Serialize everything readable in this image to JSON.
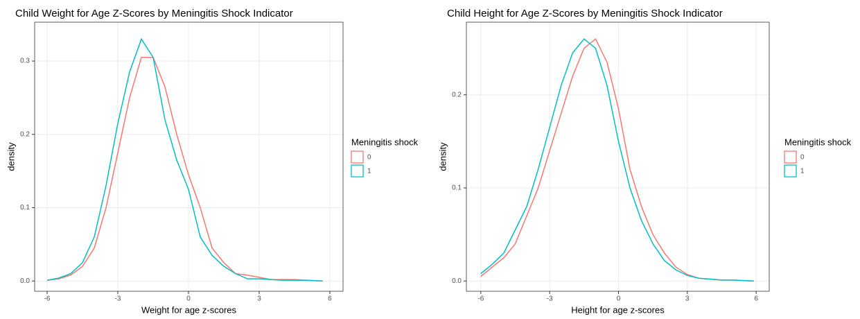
{
  "chart_data": [
    {
      "type": "line",
      "title": "Child Weight for Age Z-Scores by Meningitis Shock Indicator",
      "x_label": "Weight for age z-scores",
      "y_label": "density",
      "legend_title": "Meningitis shock",
      "legend": "right",
      "grid": true,
      "x": [
        -6,
        -5.5,
        -5,
        -4.5,
        -4,
        -3.5,
        -3,
        -2.5,
        -2,
        -1.5,
        -1,
        -0.5,
        0,
        0.5,
        1,
        1.5,
        2,
        2.5,
        3,
        3.5,
        4,
        4.5,
        5,
        5.7
      ],
      "series": [
        {
          "name": "0",
          "color": "#F8766D",
          "values": [
            0.001,
            0.003,
            0.008,
            0.02,
            0.045,
            0.1,
            0.175,
            0.25,
            0.305,
            0.305,
            0.265,
            0.2,
            0.145,
            0.1,
            0.045,
            0.025,
            0.01,
            0.008,
            0.005,
            0.002,
            0.002,
            0.002,
            0.001,
            0
          ]
        },
        {
          "name": "1",
          "color": "#00BFC4",
          "values": [
            0.001,
            0.004,
            0.01,
            0.025,
            0.06,
            0.13,
            0.215,
            0.285,
            0.33,
            0.305,
            0.22,
            0.165,
            0.125,
            0.06,
            0.035,
            0.02,
            0.01,
            0.003,
            0.003,
            0.002,
            0.001,
            0.001,
            0.001,
            0
          ]
        }
      ],
      "xlim": [
        -6.53,
        6.56
      ],
      "xticks": [
        -6,
        -3,
        0,
        3,
        6
      ],
      "ylim": [
        -0.014,
        0.353
      ],
      "yticks": [
        {
          "value": 0,
          "label": "0.0"
        },
        0.1,
        0.2,
        0.3
      ]
    },
    {
      "type": "line",
      "title": "Child Height for Age Z-Scores by Meningitis Shock Indicator",
      "x_label": "Height for age z-scores",
      "y_label": "density",
      "legend_title": "Meningitis shock",
      "legend": "right",
      "grid": true,
      "x": [
        -6,
        -5.5,
        -5,
        -4.5,
        -4,
        -3.5,
        -3,
        -2.5,
        -2,
        -1.5,
        -1,
        -0.5,
        0,
        0.5,
        1,
        1.5,
        2,
        2.5,
        3,
        3.5,
        4,
        4.5,
        5,
        5.9
      ],
      "series": [
        {
          "name": "0",
          "color": "#F8766D",
          "values": [
            0.005,
            0.015,
            0.025,
            0.04,
            0.07,
            0.1,
            0.14,
            0.18,
            0.22,
            0.25,
            0.26,
            0.235,
            0.185,
            0.12,
            0.08,
            0.05,
            0.03,
            0.015,
            0.007,
            0.003,
            0.002,
            0.001,
            0.001,
            0
          ]
        },
        {
          "name": "1",
          "color": "#00BFC4",
          "values": [
            0.008,
            0.018,
            0.03,
            0.055,
            0.08,
            0.12,
            0.165,
            0.21,
            0.245,
            0.26,
            0.25,
            0.21,
            0.15,
            0.1,
            0.065,
            0.04,
            0.022,
            0.012,
            0.006,
            0.003,
            0.002,
            0.001,
            0.001,
            0
          ]
        }
      ],
      "xlim": [
        -6.63,
        6.57
      ],
      "xticks": [
        -6,
        -3,
        0,
        3,
        6
      ],
      "ylim": [
        -0.011,
        0.278
      ],
      "yticks": [
        {
          "value": 0,
          "label": "0.0"
        },
        0.1,
        0.2
      ]
    }
  ]
}
